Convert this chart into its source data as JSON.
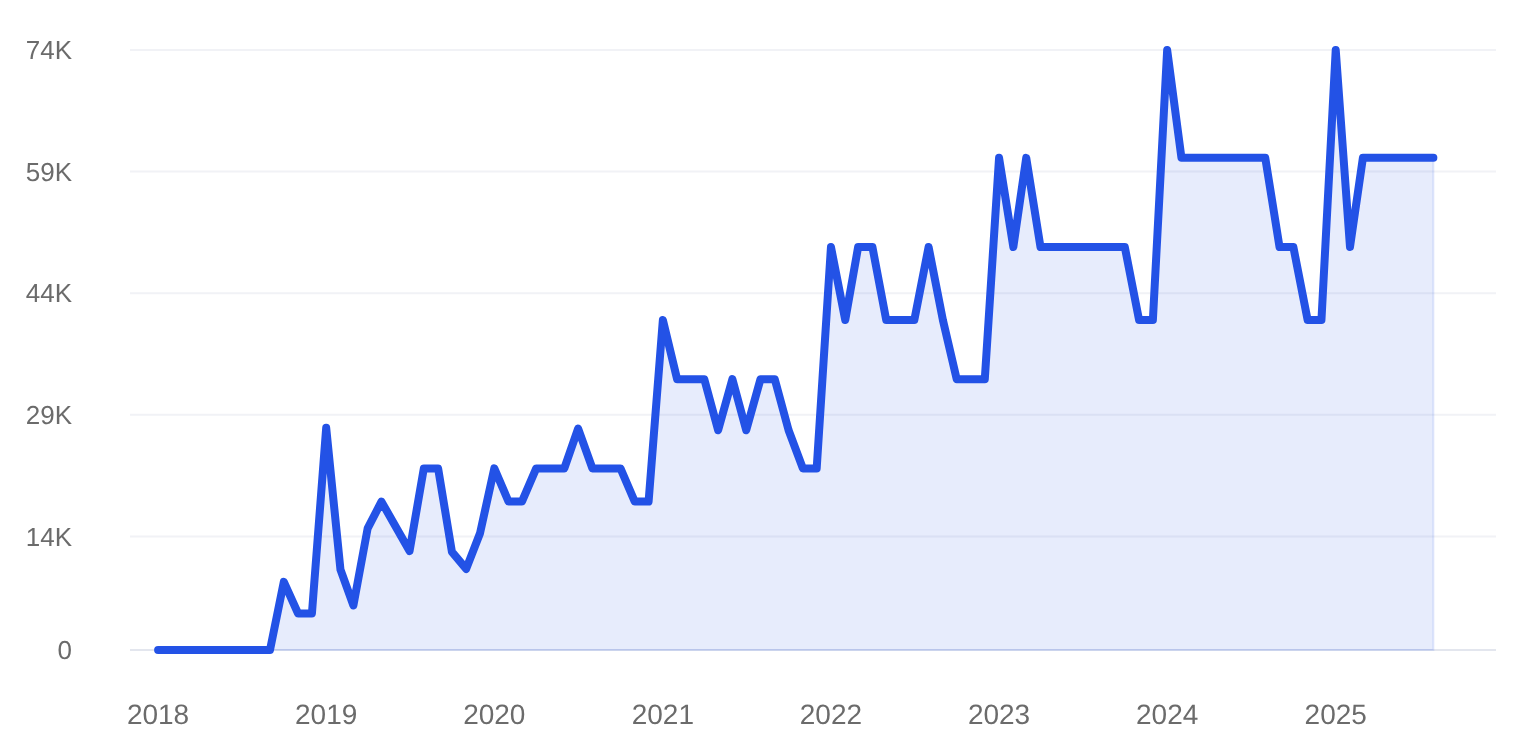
{
  "chart_data": {
    "type": "area",
    "x": [
      "2018-01",
      "2018-02",
      "2018-03",
      "2018-04",
      "2018-05",
      "2018-06",
      "2018-07",
      "2018-08",
      "2018-09",
      "2018-10",
      "2018-11",
      "2018-12",
      "2019-01",
      "2019-02",
      "2019-03",
      "2019-04",
      "2019-05",
      "2019-06",
      "2019-07",
      "2019-08",
      "2019-09",
      "2019-10",
      "2019-11",
      "2019-12",
      "2020-01",
      "2020-02",
      "2020-03",
      "2020-04",
      "2020-05",
      "2020-06",
      "2020-07",
      "2020-08",
      "2020-09",
      "2020-10",
      "2020-11",
      "2020-12",
      "2021-01",
      "2021-02",
      "2021-03",
      "2021-04",
      "2021-05",
      "2021-06",
      "2021-07",
      "2021-08",
      "2021-09",
      "2021-10",
      "2021-11",
      "2021-12",
      "2022-01",
      "2022-02",
      "2022-03",
      "2022-04",
      "2022-05",
      "2022-06",
      "2022-07",
      "2022-08",
      "2022-09",
      "2022-10",
      "2022-11",
      "2022-12",
      "2023-01",
      "2023-02",
      "2023-03",
      "2023-04",
      "2023-05",
      "2023-06",
      "2023-07",
      "2023-08",
      "2023-09",
      "2023-10",
      "2023-11",
      "2023-12",
      "2024-01",
      "2024-02",
      "2024-03",
      "2024-04",
      "2024-05",
      "2024-06",
      "2024-07",
      "2024-08",
      "2024-09",
      "2024-10",
      "2024-11",
      "2024-12",
      "2025-01",
      "2025-02",
      "2025-03",
      "2025-04",
      "2025-05",
      "2025-06",
      "2025-07",
      "2025-08"
    ],
    "series": [
      {
        "color": "#2352e6",
        "values": [
          0,
          0,
          0,
          0,
          0,
          0,
          0,
          0,
          0,
          8400,
          4500,
          4500,
          27400,
          9900,
          5500,
          15000,
          18300,
          15200,
          12200,
          22400,
          22400,
          12100,
          10000,
          14400,
          22400,
          18300,
          18300,
          22400,
          22400,
          22400,
          27300,
          22400,
          22400,
          22400,
          18300,
          18300,
          40700,
          33400,
          33400,
          33400,
          27100,
          33400,
          27100,
          33400,
          33400,
          27100,
          22400,
          22400,
          49700,
          40700,
          49700,
          49700,
          40700,
          40700,
          40700,
          49700,
          40700,
          33400,
          33400,
          33400,
          60700,
          49700,
          60700,
          49700,
          49700,
          49700,
          49700,
          49700,
          49700,
          49700,
          40700,
          40700,
          74000,
          60700,
          60700,
          60700,
          60700,
          60700,
          60700,
          60700,
          49700,
          49700,
          40700,
          40700,
          74000,
          49700,
          60700,
          60700,
          60700,
          60700,
          60700,
          60700
        ]
      }
    ],
    "xlim": [
      "2017-11",
      "2025-12-15"
    ],
    "xticks": [
      {
        "value": "2018",
        "label": "2018"
      },
      {
        "value": "2019",
        "label": "2019"
      },
      {
        "value": "2020",
        "label": "2020"
      },
      {
        "value": "2021",
        "label": "2021"
      },
      {
        "value": "2022",
        "label": "2022"
      },
      {
        "value": "2023",
        "label": "2023"
      },
      {
        "value": "2024",
        "label": "2024"
      },
      {
        "value": "2025",
        "label": "2025"
      }
    ],
    "ylim": [
      0,
      74000
    ],
    "yticks": [
      0,
      {
        "value": 14000,
        "label": "14K"
      },
      {
        "value": 29000,
        "label": "29K"
      },
      {
        "value": 44000,
        "label": "44K"
      },
      {
        "value": 59000,
        "label": "59K"
      },
      {
        "value": 74000,
        "label": "74K"
      }
    ],
    "grid": "y"
  }
}
